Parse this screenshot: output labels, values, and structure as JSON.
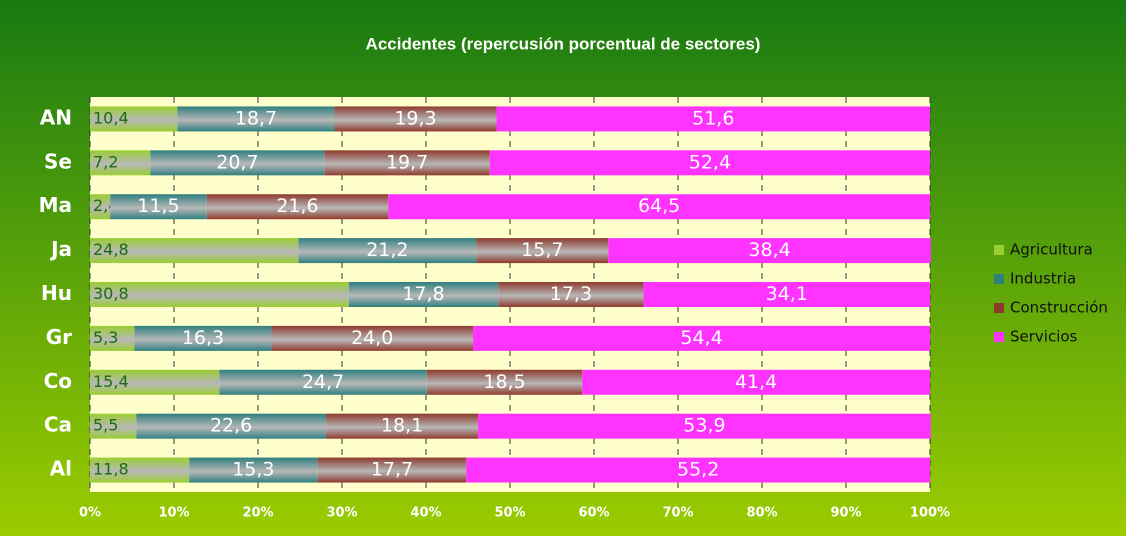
{
  "chart_data": {
    "type": "stacked_barh",
    "title": "Accidentes (repercusión porcentual de sectores)",
    "categories": [
      "AN",
      "Se",
      "Ma",
      "Ja",
      "Hu",
      "Gr",
      "Co",
      "Ca",
      "Al"
    ],
    "series": [
      {
        "name": "Agricultura",
        "color": "#9acd32",
        "values": [
          10.4,
          7.2,
          2.4,
          24.8,
          30.8,
          5.3,
          15.4,
          5.5,
          11.8
        ],
        "value_labels": [
          "10,4",
          "7,2",
          "2,4",
          "24,8",
          "30,8",
          "5,3",
          "15,4",
          "5,5",
          "11,8"
        ]
      },
      {
        "name": "Industria",
        "color": "#2f7f80",
        "values": [
          18.7,
          20.7,
          11.5,
          21.2,
          17.8,
          16.3,
          24.7,
          22.6,
          15.3
        ],
        "value_labels": [
          "18,7",
          "20,7",
          "11,5",
          "21,2",
          "17,8",
          "16,3",
          "24,7",
          "22,6",
          "15,3"
        ]
      },
      {
        "name": "Construcción",
        "color": "#8e3a2e",
        "values": [
          19.3,
          19.7,
          21.6,
          15.7,
          17.3,
          24.0,
          18.5,
          18.1,
          17.7
        ],
        "value_labels": [
          "19,3",
          "19,7",
          "21,6",
          "15,7",
          "17,3",
          "24,0",
          "18,5",
          "18,1",
          "17,7"
        ]
      },
      {
        "name": "Servicios",
        "color": "#ff33ff",
        "values": [
          51.6,
          52.4,
          64.5,
          38.4,
          34.1,
          54.4,
          41.4,
          53.9,
          55.2
        ],
        "value_labels": [
          "51,6",
          "52,4",
          "64,5",
          "38,4",
          "34,1",
          "54,4",
          "41,4",
          "53,9",
          "55,2"
        ]
      }
    ],
    "xlim": [
      0,
      100
    ],
    "xticks": [
      {
        "value": 0,
        "label": "0%"
      },
      {
        "value": 10,
        "label": "10%"
      },
      {
        "value": 20,
        "label": "20%"
      },
      {
        "value": 30,
        "label": "30%"
      },
      {
        "value": 40,
        "label": "40%"
      },
      {
        "value": 50,
        "label": "50%"
      },
      {
        "value": 60,
        "label": "60%"
      },
      {
        "value": 70,
        "label": "70%"
      },
      {
        "value": 80,
        "label": "80%"
      },
      {
        "value": 90,
        "label": "90%"
      },
      {
        "value": 100,
        "label": "100%"
      }
    ],
    "grid": true,
    "legend": "right"
  }
}
